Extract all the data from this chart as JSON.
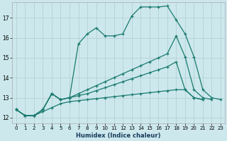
{
  "title": "",
  "xlabel": "Humidex (Indice chaleur)",
  "background_color": "#cce8ed",
  "grid_color": "#b8d4d8",
  "line_color": "#1a7a6e",
  "xlim": [
    -0.5,
    23.5
  ],
  "ylim": [
    11.7,
    17.8
  ],
  "xticks": [
    0,
    1,
    2,
    3,
    4,
    5,
    6,
    7,
    8,
    9,
    10,
    11,
    12,
    13,
    14,
    15,
    16,
    17,
    18,
    19,
    20,
    21,
    22,
    23
  ],
  "yticks": [
    12,
    13,
    14,
    15,
    16,
    17
  ],
  "lines": [
    {
      "x": [
        0,
        1,
        2,
        3,
        4,
        5,
        6,
        7,
        8,
        9,
        10,
        11,
        12,
        13,
        14,
        15,
        16,
        17,
        18,
        19,
        20,
        21,
        22,
        23
      ],
      "y": [
        12.4,
        12.1,
        12.1,
        12.4,
        13.2,
        12.9,
        13.0,
        15.7,
        16.2,
        16.5,
        16.1,
        16.1,
        16.2,
        17.1,
        17.55,
        17.55,
        17.55,
        17.6,
        16.9,
        16.2,
        15.05,
        13.4,
        13.0,
        12.9
      ]
    },
    {
      "x": [
        0,
        1,
        2,
        3,
        4,
        5,
        6,
        7,
        8,
        9,
        10,
        11,
        12,
        13,
        14,
        15,
        16,
        17,
        18,
        19,
        20,
        21,
        22,
        23
      ],
      "y": [
        12.4,
        12.1,
        12.1,
        12.4,
        13.2,
        12.9,
        13.0,
        13.2,
        13.4,
        13.6,
        13.8,
        14.0,
        14.2,
        14.4,
        14.6,
        14.8,
        15.0,
        15.2,
        16.1,
        15.05,
        13.4,
        13.0,
        12.9,
        null
      ]
    },
    {
      "x": [
        0,
        1,
        2,
        3,
        4,
        5,
        6,
        7,
        8,
        9,
        10,
        11,
        12,
        13,
        14,
        15,
        16,
        17,
        18,
        19,
        20,
        21,
        22,
        23
      ],
      "y": [
        12.4,
        12.1,
        12.1,
        12.4,
        13.2,
        12.9,
        13.0,
        13.1,
        13.2,
        13.35,
        13.5,
        13.65,
        13.8,
        13.95,
        14.1,
        14.25,
        14.4,
        14.55,
        14.8,
        13.4,
        13.0,
        12.9,
        null,
        null
      ]
    },
    {
      "x": [
        0,
        1,
        2,
        3,
        4,
        5,
        6,
        7,
        8,
        9,
        10,
        11,
        12,
        13,
        14,
        15,
        16,
        17,
        18,
        19,
        20,
        21,
        22,
        23
      ],
      "y": [
        12.4,
        12.1,
        12.1,
        12.3,
        12.5,
        12.7,
        12.8,
        12.85,
        12.9,
        12.95,
        13.0,
        13.05,
        13.1,
        13.15,
        13.2,
        13.25,
        13.3,
        13.35,
        13.4,
        13.4,
        13.0,
        12.9,
        null,
        null
      ]
    }
  ]
}
